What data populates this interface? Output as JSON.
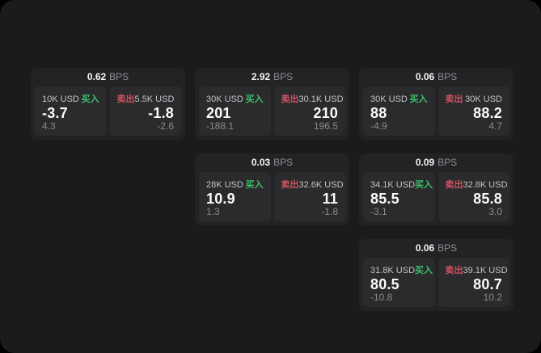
{
  "colors": {
    "buy_green": "#3fbf6b",
    "sell_red": "#d05260",
    "panel_bg": "#1b1b1d",
    "card_bg": "#232325",
    "pane_bg": "#2b2b2d"
  },
  "cards": [
    {
      "bps": "0.62",
      "bps_unit": "BPS",
      "buy": {
        "amount": "10K USD",
        "label": "买入",
        "value": "-3.7",
        "sub_value": "4.3"
      },
      "sell": {
        "label": "卖出",
        "amount": "5.5K USD",
        "value": "-1.8",
        "sub_value": "-2.6"
      }
    },
    {
      "bps": "2.92",
      "bps_unit": "BPS",
      "buy": {
        "amount": "30K USD",
        "label": "买入",
        "value": "201",
        "sub_value": "-188.1"
      },
      "sell": {
        "label": "卖出",
        "amount": "30.1K USD",
        "value": "210",
        "sub_value": "196.5"
      }
    },
    {
      "bps": "0.06",
      "bps_unit": "BPS",
      "buy": {
        "amount": "30K USD",
        "label": "买入",
        "value": "88",
        "sub_value": "-4.9"
      },
      "sell": {
        "label": "卖出",
        "amount": "30K USD",
        "value": "88.2",
        "sub_value": "4.7"
      }
    },
    {
      "bps": "0.03",
      "bps_unit": "BPS",
      "buy": {
        "amount": "28K USD",
        "label": "买入",
        "value": "10.9",
        "sub_value": "1.3"
      },
      "sell": {
        "label": "卖出",
        "amount": "32.6K USD",
        "value": "11",
        "sub_value": "-1.8"
      }
    },
    {
      "bps": "0.09",
      "bps_unit": "BPS",
      "buy": {
        "amount": "34.1K USD",
        "label": "买入",
        "value": "85.5",
        "sub_value": "-3.1"
      },
      "sell": {
        "label": "卖出",
        "amount": "32.8K USD",
        "value": "85.8",
        "sub_value": "3.0"
      }
    },
    {
      "bps": "0.06",
      "bps_unit": "BPS",
      "buy": {
        "amount": "31.8K USD",
        "label": "买入",
        "value": "80.5",
        "sub_value": "-10.8"
      },
      "sell": {
        "label": "卖出",
        "amount": "39.1K USD",
        "value": "80.7",
        "sub_value": "10.2"
      }
    }
  ]
}
